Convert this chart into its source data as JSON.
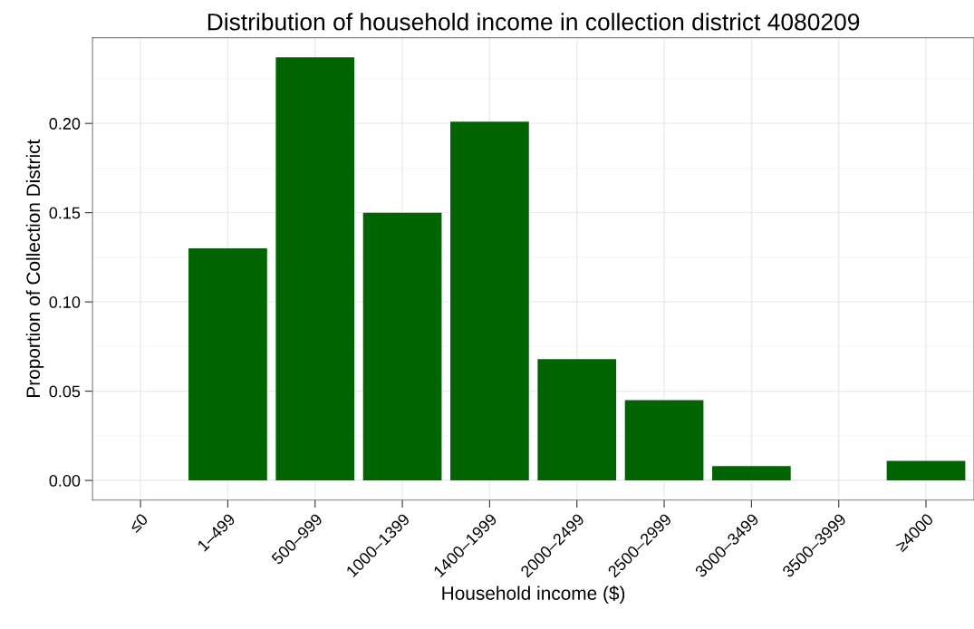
{
  "chart_data": {
    "type": "bar",
    "title": "Distribution of household income in collection district 4080209",
    "xlabel": "Household income ($)",
    "ylabel": "Proportion of Collection District",
    "categories": [
      "≤0",
      "1–499",
      "500–999",
      "1000–1399",
      "1400–1999",
      "2000–2499",
      "2500–2999",
      "3000–3499",
      "3500–3999",
      "≥4000"
    ],
    "values": [
      0,
      0.13,
      0.237,
      0.15,
      0.201,
      0.068,
      0.045,
      0.008,
      0,
      0.011
    ],
    "color": "#006400",
    "ylim": [
      -0.011,
      0.248
    ],
    "yticks": [
      {
        "value": 0,
        "label": "0.00"
      },
      {
        "value": 0.05,
        "label": "0.05"
      },
      {
        "value": 0.1,
        "label": "0.10"
      },
      {
        "value": 0.15,
        "label": "0.15"
      },
      {
        "value": 0.2,
        "label": "0.20"
      }
    ],
    "grid": true
  }
}
